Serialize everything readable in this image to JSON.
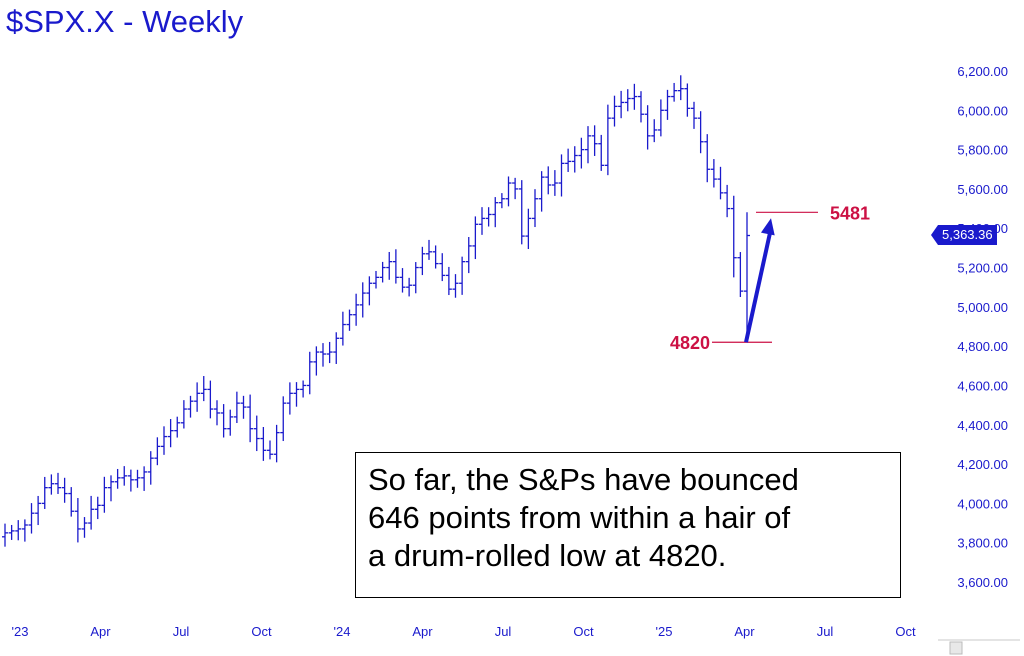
{
  "title": "$SPX.X - Weekly",
  "note_lines": [
    "So far, the S&Ps have bounced",
    "646 points from within a hair of",
    "a drum-rolled low at 4820."
  ],
  "last_price_label": "5,363.36",
  "colors": {
    "bars": "#1a1acc",
    "annotation": "#cc1144",
    "axis_text": "#1a1acc"
  },
  "chart_data": {
    "type": "ohlc-bar",
    "title": "$SPX.X - Weekly",
    "y_ticks": [
      "6,200.00",
      "6,000.00",
      "5,800.00",
      "5,600.00",
      "5,400.00",
      "5,200.00",
      "5,000.00",
      "4,800.00",
      "4,600.00",
      "4,400.00",
      "4,200.00",
      "4,000.00",
      "3,800.00",
      "3,600.00"
    ],
    "y_tick_values": [
      6200,
      6000,
      5800,
      5600,
      5400,
      5200,
      5000,
      4800,
      4600,
      4400,
      4200,
      4000,
      3800,
      3600
    ],
    "x_ticks": [
      "'23",
      "Apr",
      "Jul",
      "Oct",
      "'24",
      "Apr",
      "Jul",
      "Oct",
      "'25",
      "Apr",
      "Jul",
      "Oct"
    ],
    "ylim": [
      3550,
      6300
    ],
    "annotations": [
      {
        "label": "5481",
        "value": 5481
      },
      {
        "label": "4820",
        "value": 4820
      }
    ],
    "arrow": {
      "from": 4820,
      "to": 5481
    },
    "last_close": 5363.36,
    "close_series": [
      3850,
      3860,
      3870,
      3890,
      3950,
      4000,
      4080,
      4100,
      4080,
      4050,
      3960,
      3870,
      3900,
      3970,
      3990,
      4080,
      4110,
      4130,
      4140,
      4120,
      4130,
      4160,
      4230,
      4290,
      4340,
      4370,
      4410,
      4480,
      4520,
      4560,
      4580,
      4480,
      4460,
      4380,
      4440,
      4510,
      4490,
      4380,
      4330,
      4270,
      4250,
      4360,
      4510,
      4560,
      4580,
      4600,
      4720,
      4770,
      4760,
      4770,
      4840,
      4910,
      4960,
      5010,
      5070,
      5120,
      5150,
      5200,
      5230,
      5150,
      5100,
      5110,
      5200,
      5270,
      5280,
      5220,
      5160,
      5090,
      5120,
      5230,
      5310,
      5420,
      5450,
      5470,
      5530,
      5550,
      5630,
      5600,
      5360,
      5450,
      5550,
      5660,
      5620,
      5630,
      5730,
      5740,
      5770,
      5800,
      5870,
      5830,
      5720,
      5960,
      6020,
      6040,
      6060,
      6070,
      5980,
      5870,
      5900,
      6000,
      6070,
      6100,
      6110,
      6010,
      5960,
      5840,
      5700,
      5650,
      5580,
      5500,
      5250,
      5080,
      5363
    ],
    "low_series_note": "lowest weekly low ~4820 in April '25"
  }
}
